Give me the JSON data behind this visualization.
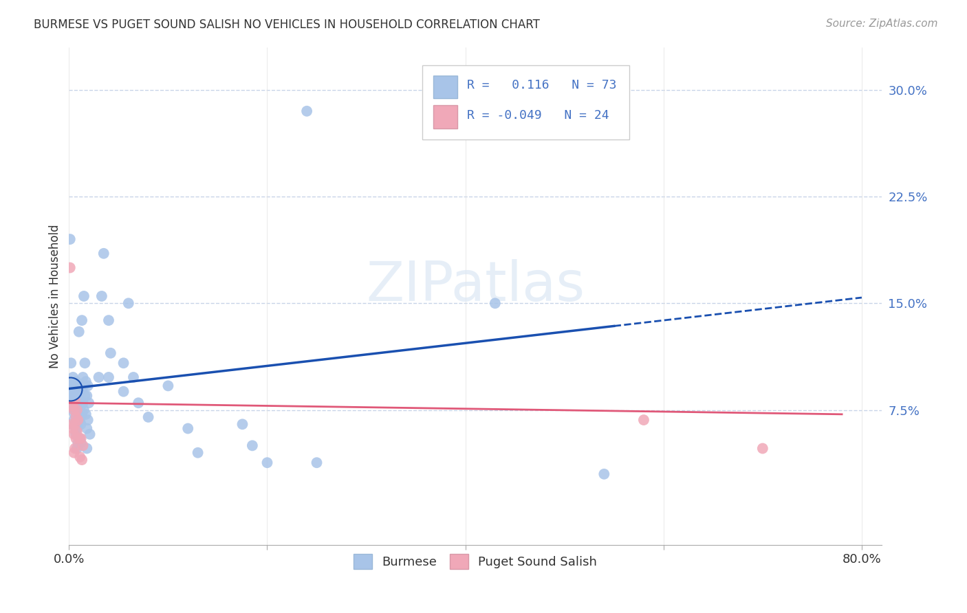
{
  "title": "BURMESE VS PUGET SOUND SALISH NO VEHICLES IN HOUSEHOLD CORRELATION CHART",
  "source": "Source: ZipAtlas.com",
  "ylabel": "No Vehicles in Household",
  "xlim": [
    0.0,
    0.82
  ],
  "ylim": [
    -0.02,
    0.33
  ],
  "yticks": [
    0.075,
    0.15,
    0.225,
    0.3
  ],
  "ytick_labels": [
    "7.5%",
    "15.0%",
    "22.5%",
    "30.0%"
  ],
  "xtick_labels": [
    "0.0%",
    "",
    "",
    "",
    "80.0%"
  ],
  "watermark": "ZIPatlas",
  "burmese_R": 0.116,
  "burmese_N": 73,
  "salish_R": -0.049,
  "salish_N": 24,
  "burmese_color": "#a8c4e8",
  "salish_color": "#f0a8b8",
  "burmese_line_color": "#1a50b0",
  "salish_line_color": "#e05878",
  "grid_color": "#c8d4e8",
  "background_color": "#ffffff",
  "burmese_line_start_y": 0.09,
  "burmese_line_end_y": 0.134,
  "burmese_line_end_x": 0.55,
  "salish_line_start_y": 0.08,
  "salish_line_end_y": 0.072,
  "salish_line_end_x": 0.78
}
